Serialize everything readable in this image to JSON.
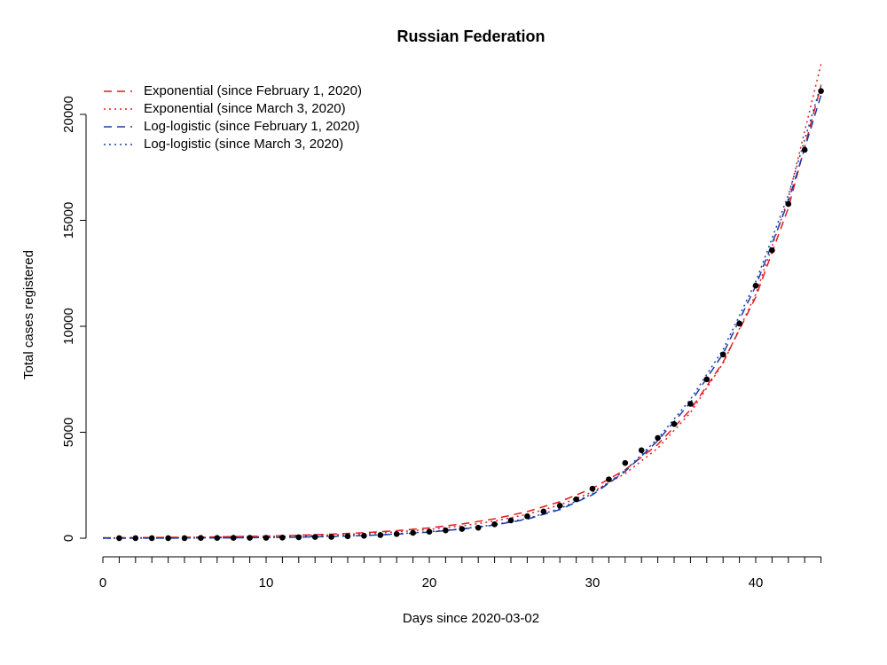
{
  "chart_data": {
    "type": "scatter",
    "title": "Russian Federation",
    "xlabel": "Days since 2020-03-02",
    "ylabel": "Total cases registered",
    "xlim": [
      0,
      44
    ],
    "ylim": [
      0,
      20000
    ],
    "xticks": [
      0,
      10,
      20,
      30,
      40
    ],
    "x_minor_ticks": [
      0,
      1,
      2,
      3,
      4,
      5,
      6,
      7,
      8,
      9,
      10,
      11,
      12,
      13,
      14,
      15,
      16,
      17,
      18,
      19,
      20,
      21,
      22,
      23,
      24,
      25,
      26,
      27,
      28,
      29,
      30,
      31,
      32,
      33,
      34,
      35,
      36,
      37,
      38,
      39,
      40,
      41,
      42,
      43,
      44
    ],
    "yticks": [
      0,
      5000,
      10000,
      15000,
      20000
    ],
    "legend": "top-left",
    "point_color": "#000000",
    "x": [
      1,
      2,
      3,
      4,
      5,
      6,
      7,
      8,
      9,
      10,
      11,
      12,
      13,
      14,
      15,
      16,
      17,
      18,
      19,
      20,
      21,
      22,
      23,
      24,
      25,
      26,
      27,
      28,
      29,
      30,
      31,
      32,
      33,
      34,
      35,
      36,
      37,
      38,
      39,
      40,
      41,
      42,
      43,
      44
    ],
    "values": [
      3,
      3,
      3,
      4,
      4,
      13,
      13,
      17,
      17,
      20,
      28,
      45,
      59,
      63,
      90,
      114,
      147,
      199,
      253,
      306,
      367,
      438,
      495,
      658,
      840,
      1036,
      1264,
      1534,
      1836,
      2337,
      2777,
      3548,
      4149,
      4731,
      5389,
      6343,
      7497,
      8672,
      10131,
      11917,
      13584,
      15770,
      18328,
      21102
    ],
    "curve_x": [
      0,
      2,
      4,
      6,
      8,
      10,
      12,
      14,
      16,
      18,
      20,
      22,
      24,
      26,
      28,
      30,
      32,
      34,
      36,
      38,
      40,
      42,
      44
    ],
    "series": [
      {
        "name": "Exponential (since February 1, 2020)",
        "color": "#e41a1c",
        "style": "dashed",
        "values": [
          21,
          29,
          39,
          54,
          74,
          101,
          139,
          190,
          260,
          356,
          488,
          669,
          916,
          1255,
          1720,
          2356,
          3228,
          4423,
          6060,
          8303,
          11376,
          15587,
          21357
        ]
      },
      {
        "name": "Exponential (since March 3, 2020)",
        "color": "#e41a1c",
        "style": "dotted",
        "values": [
          15,
          21,
          29,
          41,
          57,
          79,
          110,
          153,
          214,
          298,
          415,
          579,
          807,
          1125,
          1568,
          2186,
          3048,
          4249,
          5923,
          8257,
          11510,
          16045,
          22367
        ]
      },
      {
        "name": "Log-logistic (since February 1, 2020)",
        "color": "#1a3fa8",
        "style": "dashed",
        "values": [
          0,
          2,
          5,
          10,
          18,
          30,
          50,
          80,
          125,
          190,
          290,
          430,
          620,
          900,
          1350,
          2050,
          3150,
          4600,
          6400,
          8700,
          11900,
          15900,
          20900
        ]
      },
      {
        "name": "Log-logistic (since March 3, 2020)",
        "color": "#1a3fa8",
        "style": "dotted",
        "values": [
          0,
          3,
          7,
          13,
          22,
          36,
          58,
          90,
          138,
          205,
          305,
          445,
          640,
          930,
          1400,
          2100,
          3200,
          4700,
          6550,
          8900,
          12100,
          16200,
          21400
        ]
      }
    ]
  }
}
